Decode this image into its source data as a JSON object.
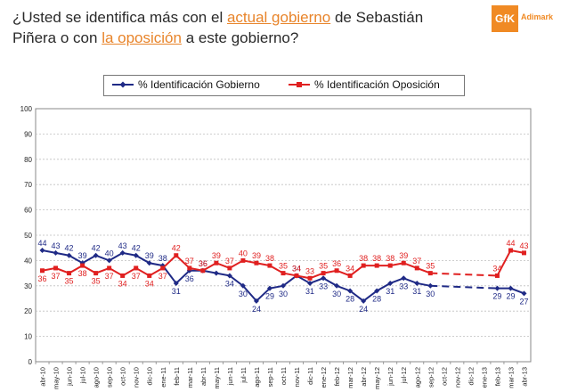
{
  "header": {
    "title_part1": "¿Usted se identifica más con el ",
    "title_hl1": "actual gobierno",
    "title_part2": " de Sebastián Piñera o con ",
    "title_hl2": "la oposición",
    "title_part3": " a este gobierno?"
  },
  "logo": {
    "mark": "GfK",
    "text": "Adimark",
    "color": "#f08a24"
  },
  "chart_data": {
    "type": "line",
    "title": "",
    "ylim": [
      0,
      100
    ],
    "yticks": [
      0,
      10,
      20,
      30,
      40,
      50,
      60,
      70,
      80,
      90,
      100
    ],
    "categories": [
      "abr-10",
      "may-10",
      "jun-10",
      "jul-10",
      "ago-10",
      "sep-10",
      "oct-10",
      "nov-10",
      "dic-10",
      "ene-11",
      "feb-11",
      "mar-11",
      "abr-11",
      "may-11",
      "jun-11",
      "jul-11",
      "ago-11",
      "sep-11",
      "oct-11",
      "nov-11",
      "dic-11",
      "ene-12",
      "feb-12",
      "mar-12",
      "abr-12",
      "may-12",
      "jun-12",
      "jul-12",
      "ago-12",
      "sep-12",
      "oct-12",
      "nov-12",
      "dic-12",
      "ene-13",
      "feb-13",
      "mar-13",
      "abr-13"
    ],
    "series": [
      {
        "name": "% Identificación Gobierno",
        "color": "#1f2a86",
        "values": [
          44,
          43,
          42,
          39,
          42,
          40,
          43,
          42,
          39,
          38,
          31,
          36,
          36,
          35,
          34,
          30,
          24,
          29,
          30,
          34,
          31,
          33,
          30,
          28,
          24,
          28,
          31,
          33,
          31,
          30,
          null,
          null,
          null,
          null,
          29,
          29,
          27
        ],
        "labels": [
          "44",
          "43",
          "42",
          "39",
          "42",
          "40",
          "43",
          "42",
          "39",
          "38",
          "31",
          "36",
          "36",
          "",
          "34",
          "30",
          "24",
          "29",
          "30",
          "34",
          "31",
          "33",
          "30",
          "28",
          "24",
          "28",
          "31",
          "33",
          "31",
          "30",
          "",
          "",
          "",
          "",
          "29",
          "29",
          "27"
        ],
        "dashed_from": 29,
        "dashed_to": 34
      },
      {
        "name": "% Identificación Oposición",
        "color": "#e02020",
        "values": [
          36,
          37,
          35,
          38,
          35,
          37,
          34,
          37,
          34,
          37,
          42,
          37,
          36,
          39,
          37,
          40,
          39,
          38,
          35,
          34,
          33,
          35,
          36,
          34,
          38,
          38,
          38,
          39,
          37,
          35,
          null,
          null,
          null,
          null,
          34,
          44,
          43
        ],
        "labels": [
          "36",
          "37",
          "35",
          "38",
          "35",
          "37",
          "34",
          "37",
          "34",
          "37",
          "42",
          "37",
          "36",
          "39",
          "37",
          "40",
          "39",
          "38",
          "35",
          "34",
          "33",
          "35",
          "36",
          "34",
          "38",
          "38",
          "38",
          "39",
          "37",
          "35",
          "",
          "",
          "",
          "",
          "34",
          "44",
          "43"
        ],
        "dashed_from": 29,
        "dashed_to": 34
      }
    ]
  }
}
